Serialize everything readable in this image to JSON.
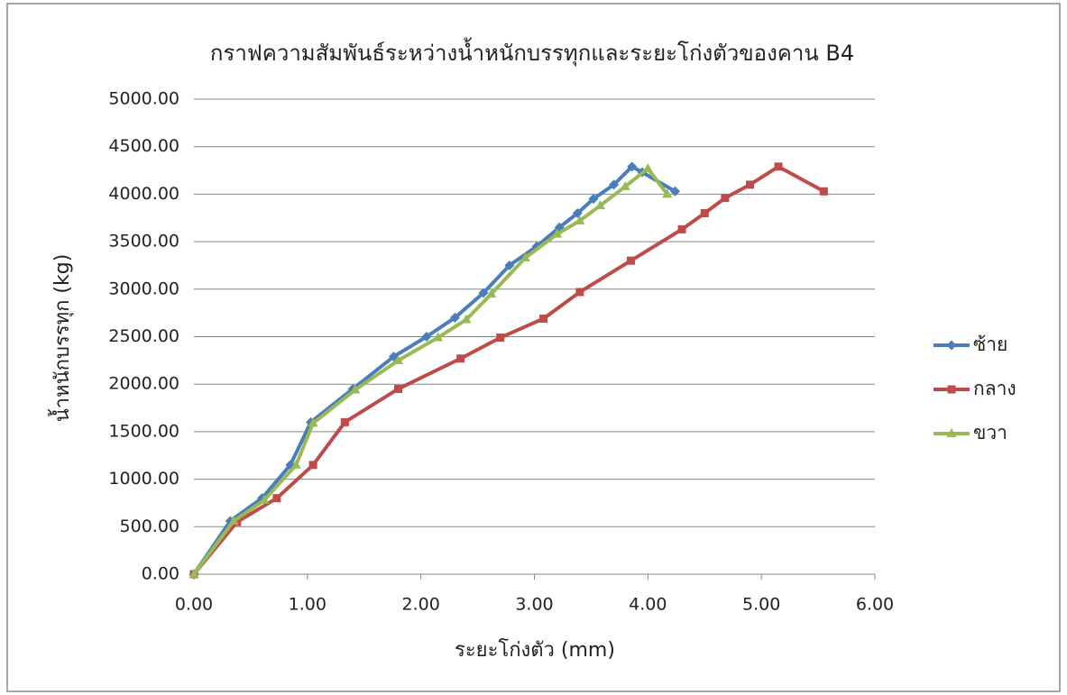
{
  "chart_data": {
    "type": "line",
    "title": "กราฟความสัมพันธ์ระหว่างน้ำหนักบรรทุกและระยะโก่งตัวของคาน B4",
    "x_label": "ระยะโก่งตัว (mm)",
    "y_label": "น้ำหนักบรรทุก (kg)",
    "xlim": [
      0,
      6
    ],
    "xticks": [
      {
        "value": 0,
        "label": "0.00"
      },
      {
        "value": 1,
        "label": "1.00"
      },
      {
        "value": 2,
        "label": "2.00"
      },
      {
        "value": 3,
        "label": "3.00"
      },
      {
        "value": 4,
        "label": "4.00"
      },
      {
        "value": 5,
        "label": "5.00"
      },
      {
        "value": 6,
        "label": "6.00"
      }
    ],
    "ylim": [
      0,
      5000
    ],
    "yticks": [
      {
        "value": 0,
        "label": "0.00"
      },
      {
        "value": 500,
        "label": "500.00"
      },
      {
        "value": 1000,
        "label": "1000.00"
      },
      {
        "value": 1500,
        "label": "1500.00"
      },
      {
        "value": 2000,
        "label": "2000.00"
      },
      {
        "value": 2500,
        "label": "2500.00"
      },
      {
        "value": 3000,
        "label": "3000.00"
      },
      {
        "value": 3500,
        "label": "3500.00"
      },
      {
        "value": 4000,
        "label": "4000.00"
      },
      {
        "value": 4500,
        "label": "4500.00"
      },
      {
        "value": 5000,
        "label": "5000.00"
      }
    ],
    "grid": true,
    "legend": "right",
    "series": [
      {
        "name": "ซ้าย",
        "color": "#4a7ebb",
        "marker": "diamond",
        "x": [
          0,
          0.32,
          0.6,
          0.85,
          1.03,
          1.4,
          1.76,
          2.05,
          2.3,
          2.55,
          2.78,
          3.02,
          3.22,
          3.38,
          3.52,
          3.7,
          3.86,
          3.95,
          4.24
        ],
        "values": [
          0,
          560,
          800,
          1150,
          1600,
          1950,
          2290,
          2500,
          2700,
          2960,
          3250,
          3450,
          3650,
          3800,
          3950,
          4100,
          4290,
          4230,
          4030
        ]
      },
      {
        "name": "กลาง",
        "color": "#be4b48",
        "marker": "square",
        "x": [
          0,
          0.38,
          0.73,
          1.05,
          1.33,
          1.8,
          2.35,
          2.7,
          3.08,
          3.4,
          3.85,
          4.3,
          4.5,
          4.68,
          4.9,
          5.15,
          5.55
        ],
        "values": [
          0,
          550,
          800,
          1150,
          1600,
          1950,
          2270,
          2490,
          2690,
          2970,
          3300,
          3630,
          3800,
          3960,
          4100,
          4290,
          4030
        ]
      },
      {
        "name": "ขวา",
        "color": "#98b954",
        "marker": "triangle",
        "x": [
          0,
          0.35,
          0.62,
          0.9,
          1.05,
          1.42,
          1.8,
          2.15,
          2.4,
          2.62,
          2.92,
          3.2,
          3.4,
          3.58,
          3.8,
          4.0,
          4.17
        ],
        "values": [
          0,
          560,
          780,
          1150,
          1590,
          1940,
          2250,
          2490,
          2680,
          2950,
          3330,
          3580,
          3720,
          3880,
          4080,
          4270,
          4000
        ]
      }
    ]
  }
}
